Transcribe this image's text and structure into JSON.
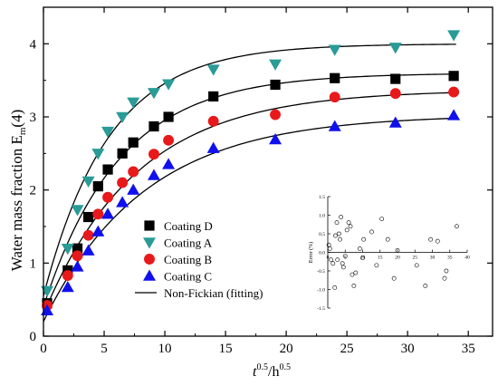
{
  "chart_data": {
    "type": "scatter",
    "xlabel_main": "t",
    "xlabel_sup1": "0.5",
    "xlabel_unit": "/h",
    "xlabel_sup2": "0.5",
    "ylabel": "Water mass fraction  E",
    "ylabel_sub": "m",
    "ylabel_suffix": "(4)",
    "xlim": [
      0,
      37
    ],
    "ylim": [
      0,
      4.5
    ],
    "xticks": [
      0,
      5,
      10,
      15,
      20,
      25,
      30,
      35
    ],
    "yticks": [
      0,
      1,
      2,
      3,
      4
    ],
    "legend_position": "center-left",
    "series": [
      {
        "name": "Coating D",
        "marker": "square",
        "color": "#000000",
        "points": [
          [
            0.3,
            0.45
          ],
          [
            2,
            0.9
          ],
          [
            2.8,
            1.2
          ],
          [
            3.7,
            1.63
          ],
          [
            4.5,
            2.05
          ],
          [
            5.3,
            2.28
          ],
          [
            6.5,
            2.5
          ],
          [
            7.4,
            2.65
          ],
          [
            9.1,
            2.87
          ],
          [
            10.3,
            3.0
          ],
          [
            14,
            3.28
          ],
          [
            19.1,
            3.44
          ],
          [
            24,
            3.53
          ],
          [
            29,
            3.52
          ],
          [
            33.8,
            3.56
          ]
        ],
        "fit": {
          "a": 0.4,
          "b": 3.2,
          "k": 0.16
        }
      },
      {
        "name": "Coating A",
        "marker": "triangle-down",
        "color": "#2a9b96",
        "points": [
          [
            0.3,
            0.62
          ],
          [
            2,
            1.2
          ],
          [
            2.8,
            1.73
          ],
          [
            3.7,
            2.12
          ],
          [
            4.5,
            2.5
          ],
          [
            5.3,
            2.8
          ],
          [
            6.5,
            3.0
          ],
          [
            7.4,
            3.2
          ],
          [
            9.1,
            3.33
          ],
          [
            10.3,
            3.45
          ],
          [
            14,
            3.65
          ],
          [
            19.1,
            3.72
          ],
          [
            24,
            3.92
          ],
          [
            29,
            3.95
          ],
          [
            33.8,
            4.12
          ]
        ],
        "fit": {
          "a": 0.55,
          "b": 3.45,
          "k": 0.185
        }
      },
      {
        "name": "Coating B",
        "marker": "circle",
        "color": "#e8191b",
        "points": [
          [
            0.3,
            0.42
          ],
          [
            2,
            0.83
          ],
          [
            2.8,
            1.1
          ],
          [
            3.7,
            1.38
          ],
          [
            4.5,
            1.67
          ],
          [
            5.3,
            1.9
          ],
          [
            6.5,
            2.1
          ],
          [
            7.4,
            2.25
          ],
          [
            9.1,
            2.49
          ],
          [
            10.3,
            2.68
          ],
          [
            14,
            2.94
          ],
          [
            19.1,
            3.03
          ],
          [
            24,
            3.27
          ],
          [
            29,
            3.32
          ],
          [
            33.8,
            3.34
          ]
        ],
        "fit": {
          "a": 0.3,
          "b": 3.07,
          "k": 0.13
        }
      },
      {
        "name": "Coating C",
        "marker": "triangle-up",
        "color": "#1010ee",
        "points": [
          [
            0.3,
            0.35
          ],
          [
            2,
            0.67
          ],
          [
            2.8,
            0.95
          ],
          [
            3.7,
            1.17
          ],
          [
            4.5,
            1.43
          ],
          [
            5.3,
            1.67
          ],
          [
            6.5,
            1.83
          ],
          [
            7.4,
            2.0
          ],
          [
            9.1,
            2.2
          ],
          [
            10.3,
            2.35
          ],
          [
            14,
            2.57
          ],
          [
            19.1,
            2.69
          ],
          [
            24,
            2.87
          ],
          [
            29,
            2.92
          ],
          [
            33.8,
            3.02
          ]
        ],
        "fit": {
          "a": 0.2,
          "b": 2.83,
          "k": 0.12
        }
      }
    ],
    "fit_legend_label": "Non-Fickian  (fitting)",
    "inset": {
      "ylabel": "Error (%)",
      "xlim": [
        0,
        40
      ],
      "ylim": [
        -1.5,
        1.5
      ],
      "xticks": [
        0,
        5,
        10,
        15,
        20,
        25,
        30,
        35,
        40
      ],
      "yticks": [
        -1.5,
        -1.0,
        -0.5,
        0.0,
        0.5,
        1.0,
        1.5
      ],
      "ytick_labels": [
        "-1.5",
        "-1.0",
        "-0.5",
        "0.0",
        "0.5",
        "1.0",
        "1.5"
      ],
      "points": [
        [
          0.3,
          0.2
        ],
        [
          0.6,
          0.1
        ],
        [
          0.9,
          -0.2
        ],
        [
          1.5,
          -0.3
        ],
        [
          2,
          -0.95
        ],
        [
          2.2,
          0.45
        ],
        [
          2.6,
          0.8
        ],
        [
          2.8,
          -0.2
        ],
        [
          3.2,
          0.5
        ],
        [
          3.5,
          0.35
        ],
        [
          3.8,
          0.95
        ],
        [
          4.2,
          -0.3
        ],
        [
          4.5,
          -0.4
        ],
        [
          5,
          -0.1
        ],
        [
          5.5,
          0.6
        ],
        [
          6,
          0.8
        ],
        [
          6.5,
          0.7
        ],
        [
          7,
          -0.6
        ],
        [
          7.5,
          -0.9
        ],
        [
          8,
          -0.55
        ],
        [
          9.2,
          0.1
        ],
        [
          10,
          -0.15
        ],
        [
          10.3,
          0.35
        ],
        [
          12.6,
          0.55
        ],
        [
          14,
          -0.35
        ],
        [
          15.5,
          0.9
        ],
        [
          17.2,
          0.35
        ],
        [
          19,
          -0.7
        ],
        [
          20,
          0.05
        ],
        [
          25.5,
          -0.35
        ],
        [
          28,
          -0.9
        ],
        [
          29.5,
          0.35
        ],
        [
          31.5,
          0.3
        ],
        [
          33.5,
          -0.7
        ],
        [
          34,
          -0.5
        ],
        [
          37,
          0.7
        ]
      ]
    }
  }
}
